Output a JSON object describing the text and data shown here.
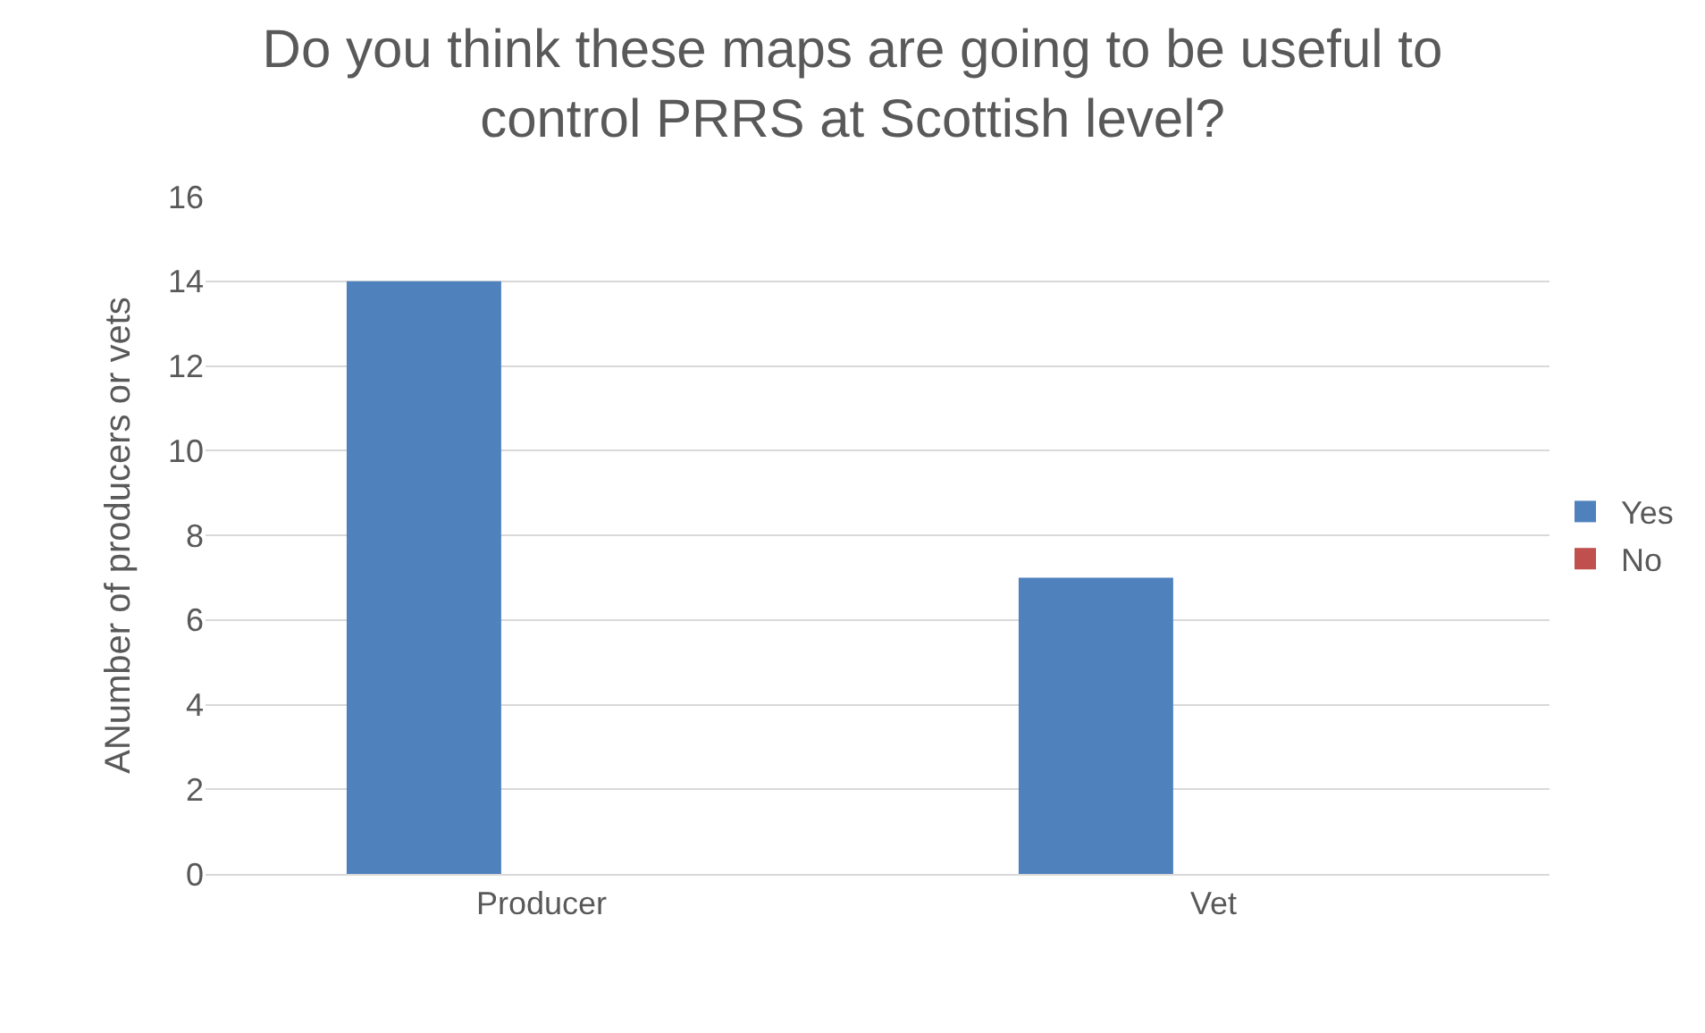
{
  "chart_data": {
    "type": "bar",
    "title": "Do you think these maps are going to be useful to control PRRS at Scottish level?",
    "ylabel": "ANumber of producers or vets",
    "categories": [
      "Producer",
      "Vet"
    ],
    "series": [
      {
        "name": "Yes",
        "color": "#4f81bd",
        "values": [
          14,
          7
        ]
      },
      {
        "name": "No",
        "color": "#c0504d",
        "values": [
          0,
          0
        ]
      }
    ],
    "ylim": [
      0,
      16
    ],
    "yticks": [
      0,
      2,
      4,
      6,
      8,
      10,
      12,
      14,
      16
    ],
    "grid": "y",
    "legend": "right"
  }
}
